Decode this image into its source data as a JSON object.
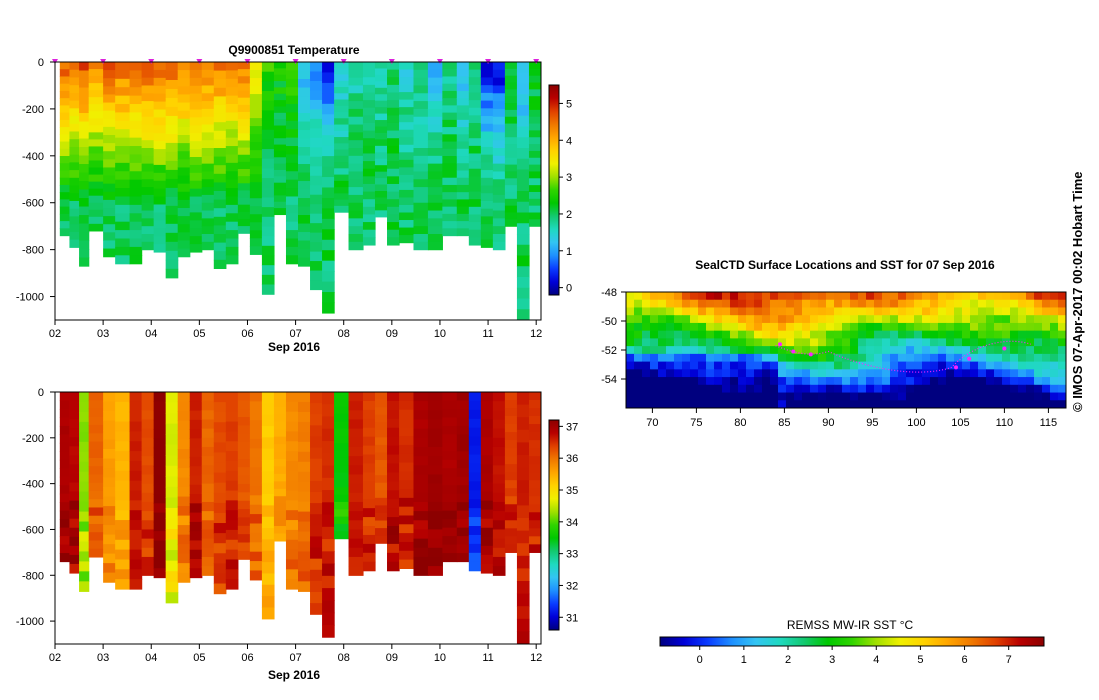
{
  "colors": {
    "rainbow": [
      "#00007f",
      "#0000d8",
      "#0a3cff",
      "#1e90ff",
      "#33c4f2",
      "#1fd9c0",
      "#13c970",
      "#00c800",
      "#30d400",
      "#a0e000",
      "#f0f000",
      "#ffd200",
      "#ffa500",
      "#f07800",
      "#e04000",
      "#b80000",
      "#8c0000"
    ],
    "float_marker": "#dd22dd",
    "track": "#ff22ff"
  },
  "chart_data": [
    {
      "id": "temperature",
      "type": "heatmap",
      "title": "Q9900851  Temperature",
      "xlabel": "Sep 2016",
      "x_ticks": [
        "02",
        "03",
        "04",
        "05",
        "06",
        "07",
        "08",
        "09",
        "10",
        "11",
        "12"
      ],
      "y_ticks": [
        "0",
        "-200",
        "-400",
        "-600",
        "-800",
        "-1000"
      ],
      "xlim": [
        2.0,
        12.1
      ],
      "ylim": [
        -1100,
        0
      ],
      "colorbar": {
        "min": -0.2,
        "max": 5.5,
        "ticks": [
          "0",
          "1",
          "2",
          "3",
          "4",
          "5"
        ]
      },
      "profile_times": [
        2.1,
        2.3,
        2.5,
        2.7,
        3.0,
        3.25,
        3.55,
        3.8,
        4.05,
        4.3,
        4.55,
        4.8,
        5.05,
        5.3,
        5.55,
        5.8,
        6.05,
        6.3,
        6.55,
        6.8,
        7.05,
        7.3,
        7.55,
        7.8,
        8.1,
        8.4,
        8.65,
        8.9,
        9.15,
        9.45,
        9.75,
        10.05,
        10.35,
        10.6,
        10.85,
        11.1,
        11.35,
        11.6,
        11.85
      ],
      "profile_depths": [
        740,
        790,
        870,
        720,
        830,
        860,
        860,
        800,
        810,
        920,
        830,
        810,
        800,
        880,
        860,
        730,
        820,
        990,
        650,
        860,
        870,
        970,
        1070,
        640,
        800,
        780,
        660,
        780,
        770,
        800,
        800,
        740,
        740,
        780,
        790,
        800,
        700,
        1100,
        700
      ],
      "surface_temps": [
        4.6,
        4.3,
        4.7,
        4.2,
        4.6,
        4.5,
        4.4,
        4.6,
        4.6,
        4.5,
        4.4,
        4.5,
        4.4,
        4.4,
        4.3,
        4.4,
        3.6,
        2.6,
        2.4,
        2.5,
        1.1,
        0.9,
        0.4,
        1.4,
        1.7,
        1.8,
        1.7,
        2.0,
        1.5,
        1.7,
        1.0,
        1.9,
        1.3,
        1.9,
        0.3,
        0.2,
        2.0,
        1.0,
        2.2
      ],
      "float_marks": [
        2.0,
        3.0,
        4.0,
        5.0,
        6.0,
        7.0,
        8.0,
        9.0,
        10.0,
        11.0,
        12.0
      ]
    },
    {
      "id": "salinity",
      "type": "heatmap",
      "title": "",
      "xlabel": "Sep 2016",
      "x_ticks": [
        "02",
        "03",
        "04",
        "05",
        "06",
        "07",
        "08",
        "09",
        "10",
        "11",
        "12"
      ],
      "y_ticks": [
        "0",
        "-200",
        "-400",
        "-600",
        "-800",
        "-1000"
      ],
      "xlim": [
        2.0,
        12.1
      ],
      "ylim": [
        -1100,
        0
      ],
      "colorbar": {
        "min": 30.6,
        "max": 37.2,
        "ticks": [
          "31",
          "32",
          "33",
          "34",
          "35",
          "36",
          "37"
        ]
      },
      "profile_values": [
        36.9,
        36.8,
        34.2,
        36.1,
        35.6,
        35.4,
        36.6,
        36.3,
        37.2,
        34.6,
        35.8,
        36.6,
        36.1,
        36.3,
        36.4,
        36.2,
        36.0,
        35.2,
        35.5,
        35.8,
        35.9,
        36.4,
        36.5,
        33.5,
        36.6,
        36.4,
        36.2,
        36.7,
        36.5,
        36.9,
        37.0,
        36.9,
        37.0,
        31.2,
        36.9,
        36.7,
        36.4,
        36.6,
        36.5
      ]
    },
    {
      "id": "sst-map",
      "type": "heatmap",
      "title": "SealCTD Surface Locations and SST for 07 Sep 2016",
      "x_ticks": [
        "70",
        "75",
        "80",
        "85",
        "90",
        "95",
        "100",
        "105",
        "110",
        "115"
      ],
      "y_ticks": [
        "-48",
        "-50",
        "-52",
        "-54"
      ],
      "xlim": [
        67,
        117
      ],
      "ylim": [
        -56,
        -48
      ],
      "colorbar_label": "REMSS MW-IR SST °C",
      "colorbar": {
        "min": -0.9,
        "max": 7.8,
        "ticks": [
          "0",
          "1",
          "2",
          "3",
          "4",
          "5",
          "6",
          "7"
        ]
      }
    }
  ],
  "credit": "© IMOS 07-Apr-2017 00:02 Hobart Time"
}
